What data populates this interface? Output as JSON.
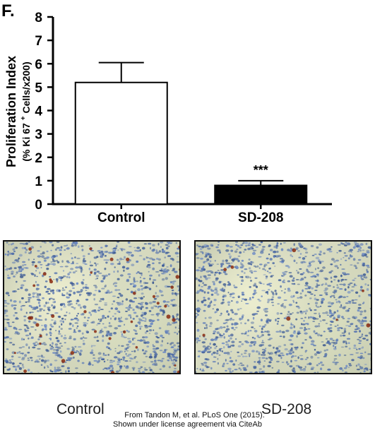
{
  "panel_letter": "F.",
  "chart_data": {
    "type": "bar",
    "categories": [
      "Control",
      "SD-208"
    ],
    "values": [
      5.2,
      0.8
    ],
    "error_upper": [
      6.05,
      1.0
    ],
    "ylabel_line1": "Proliferation Index",
    "ylabel_line2": "(% Ki 67 ",
    "ylabel_sup": "+",
    "ylabel_line2_end": " Cells/x200)",
    "ylim": [
      0,
      8
    ],
    "yticks": [
      "0",
      "1",
      "2",
      "3",
      "4",
      "5",
      "6",
      "7",
      "8"
    ],
    "significance": [
      "",
      "***"
    ],
    "bar_colors": [
      "#ffffff",
      "#000000"
    ],
    "grid": false,
    "legend": "none"
  },
  "images": [
    {
      "caption": "Control"
    },
    {
      "caption": "SD-208"
    }
  ],
  "credit": {
    "line1": "From Tandon M, et al. PLoS One (2015).",
    "line2": "Shown under license agreement via CiteAb"
  }
}
